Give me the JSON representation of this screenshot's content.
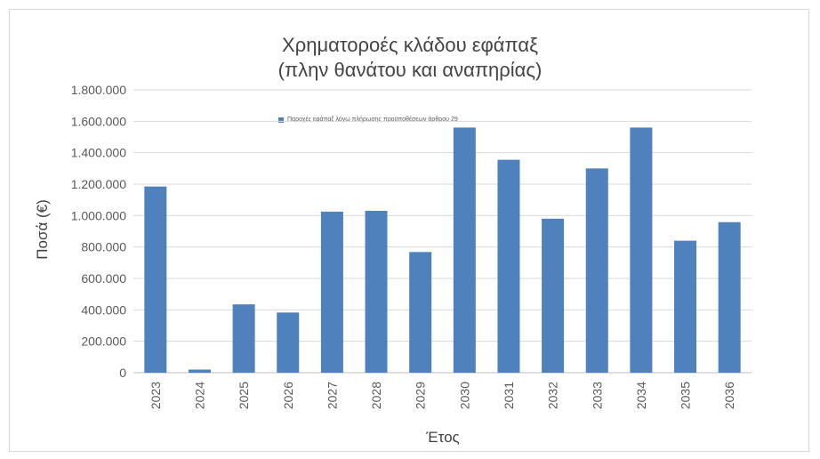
{
  "chart_data": {
    "type": "bar",
    "title": [
      "Χρηματοροές κλάδου εφάπαξ",
      "(πλην θανάτου και αναπηρίας)"
    ],
    "xlabel": "Έτος",
    "ylabel": "Ποσά (€)",
    "categories": [
      "2023",
      "2024",
      "2025",
      "2026",
      "2027",
      "2028",
      "2029",
      "2030",
      "2031",
      "2032",
      "2033",
      "2034",
      "2035",
      "2036"
    ],
    "series": [
      {
        "name": "Παροχές εφάπαξ λόγω πλήρωσης προϋποθέσεων άρθρου 29",
        "values": [
          1185000,
          20000,
          435000,
          383000,
          1025000,
          1030000,
          768000,
          1560000,
          1355000,
          980000,
          1300000,
          1560000,
          840000,
          958000
        ]
      }
    ],
    "ylim": [
      0,
      1800000
    ],
    "yticks": [
      0,
      200000,
      400000,
      600000,
      800000,
      1000000,
      1200000,
      1400000,
      1600000,
      1800000
    ],
    "ytick_labels": [
      "0",
      "200.000",
      "400.000",
      "600.000",
      "800.000",
      "1.000.000",
      "1.200.000",
      "1.400.000",
      "1.600.000",
      "1.800.000"
    ],
    "grid": true,
    "legend_position": "top-left inside plot",
    "bar_color": "#4f81bd",
    "grid_color": "#d9d9d9"
  }
}
